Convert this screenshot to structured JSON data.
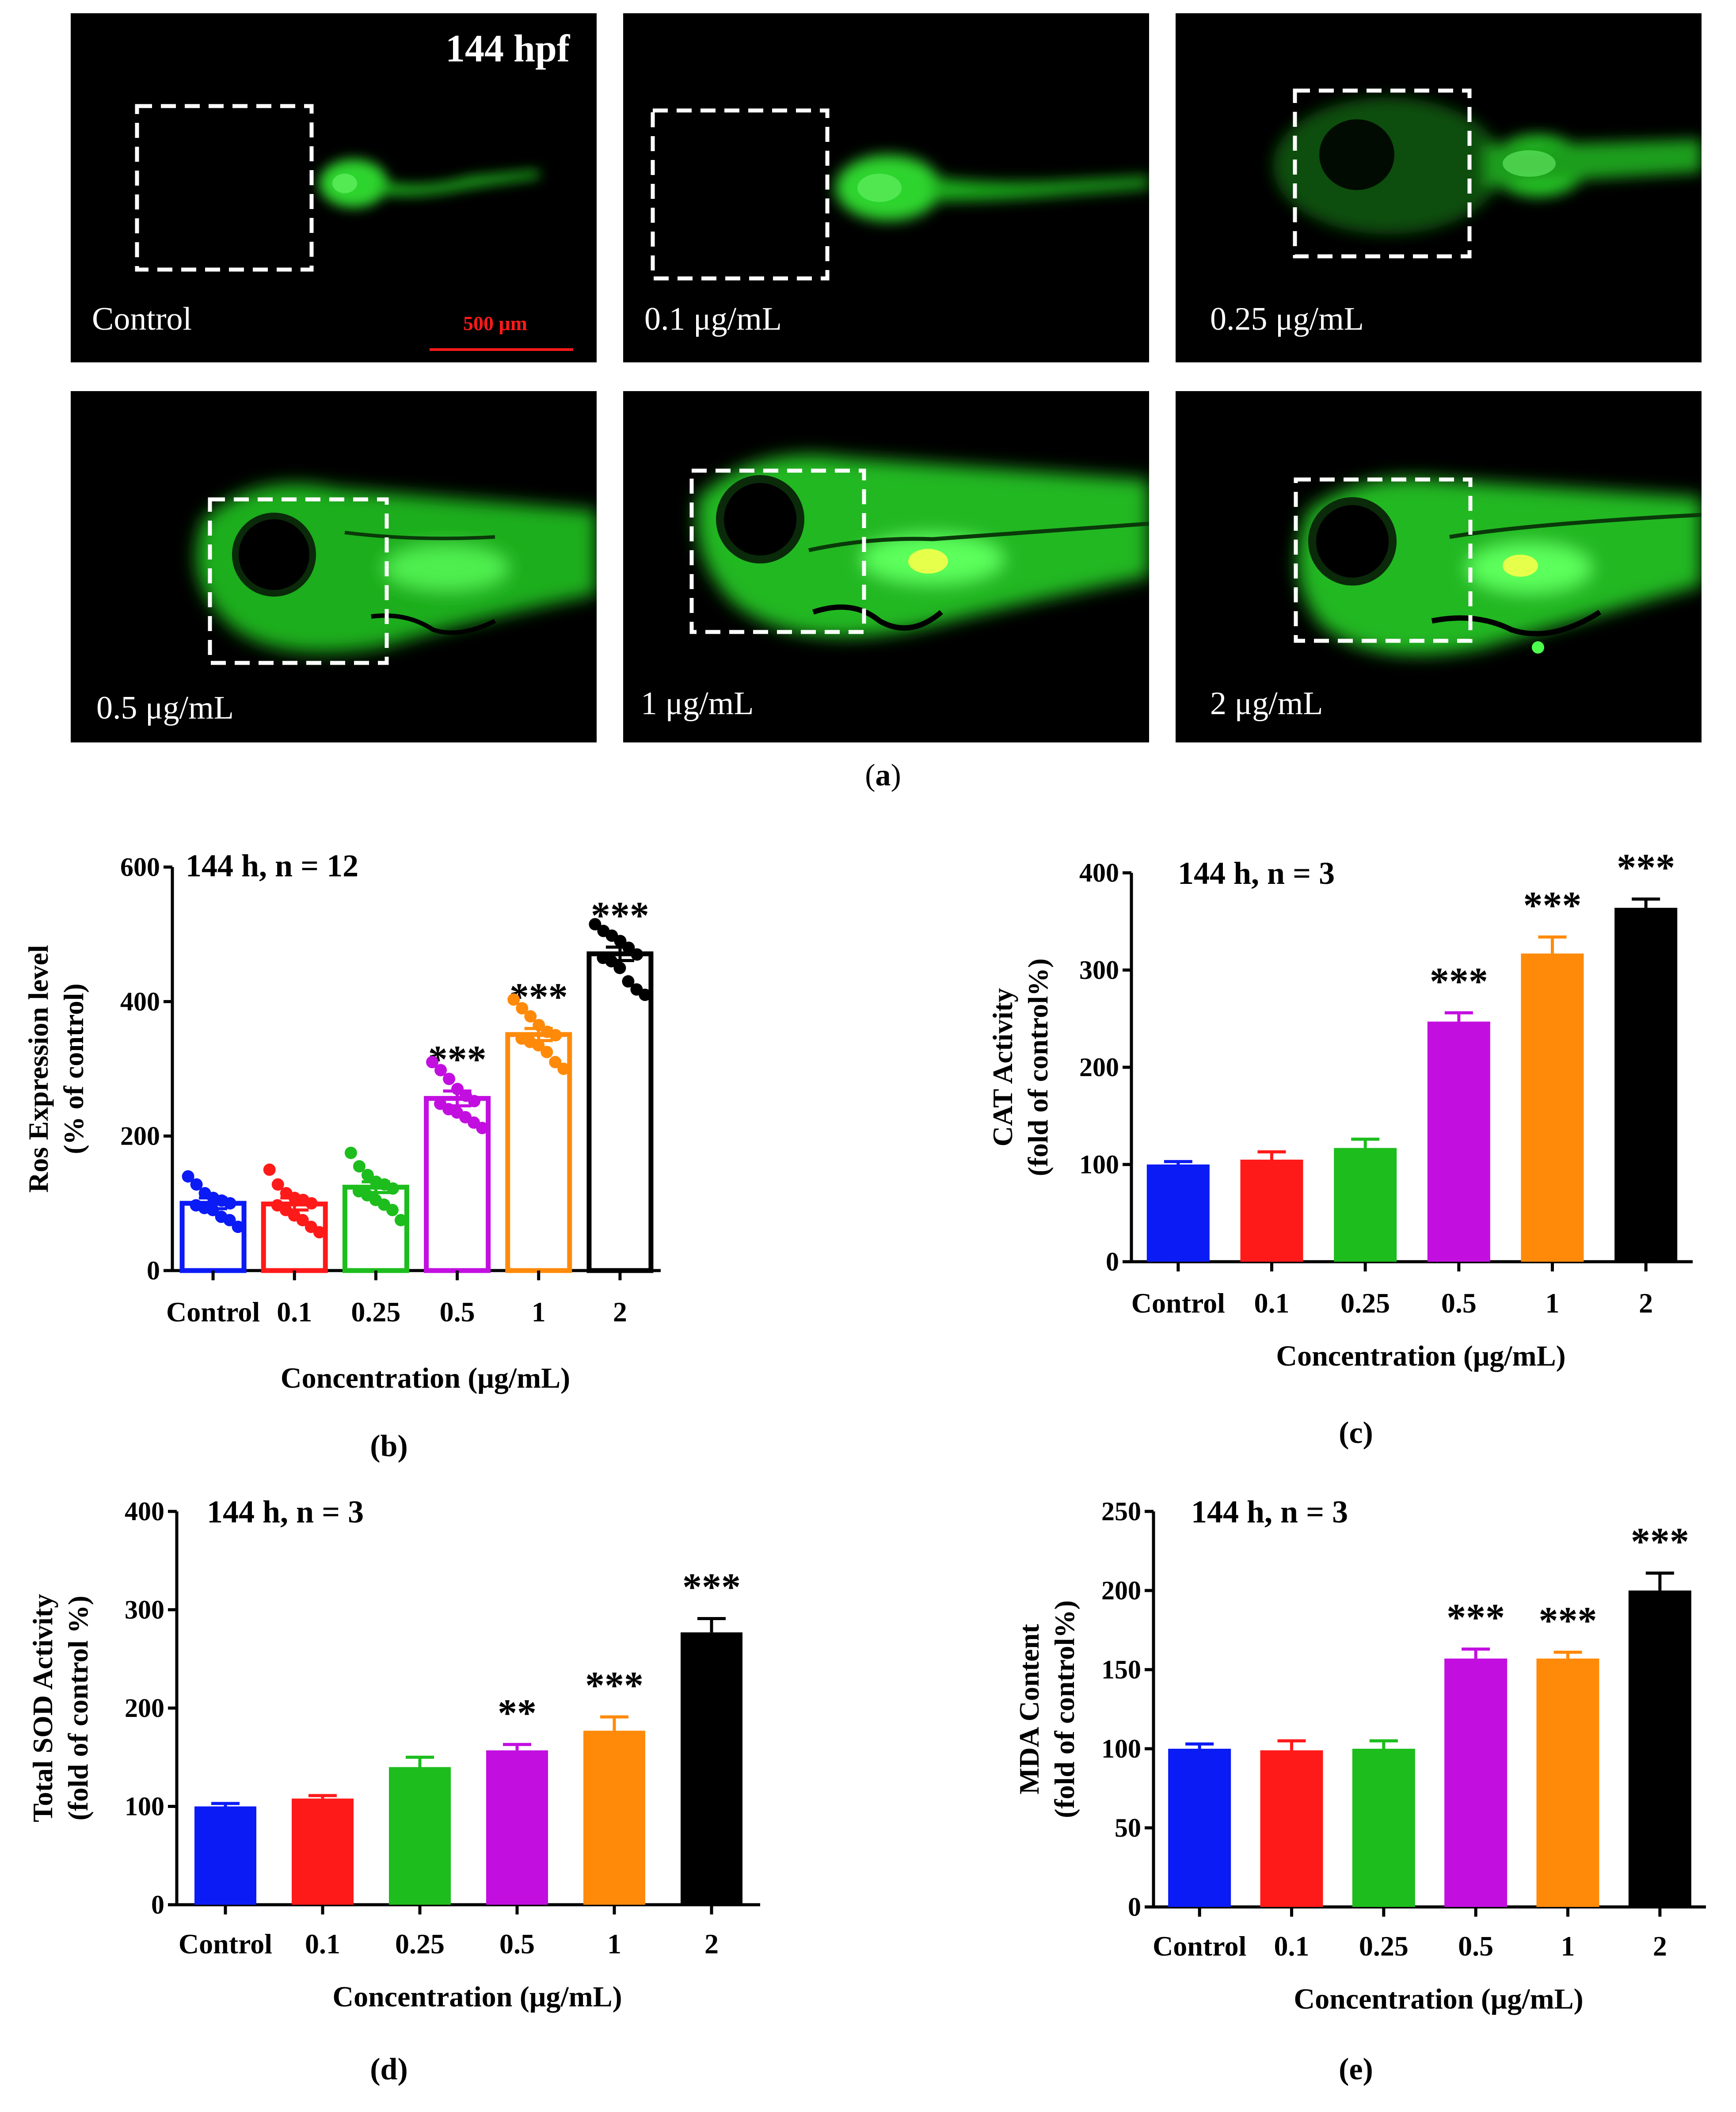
{
  "figure": {
    "panel_a": {
      "caption_letter": "a",
      "time_label": "144 hpf",
      "scale_bar_label": "500 μm",
      "scale_bar_color": "#ff1a1a",
      "fluorescence_color": "#27e627",
      "images": [
        {
          "label": "Control"
        },
        {
          "label": "0.1 μg/mL"
        },
        {
          "label": "0.25 μg/mL"
        },
        {
          "label": "0.5 μg/mL"
        },
        {
          "label": "1 μg/mL"
        },
        {
          "label": "2 μg/mL"
        }
      ]
    }
  },
  "chart_data": [
    {
      "id": "b",
      "caption_letter": "b",
      "type": "bar",
      "scatter_overlay": true,
      "bar_style": "outline",
      "title": "144 h, n = 12",
      "ylabel_line1": "Ros Expression level",
      "ylabel_line2": "(% of control)",
      "xlabel": "Concentration (μg/mL)",
      "ylim": [
        0,
        600
      ],
      "yticks": [
        "0",
        "200",
        "400",
        "600"
      ],
      "ytick_values": [
        0,
        200,
        400,
        600
      ],
      "categories": [
        "Control",
        "0.1",
        "0.25",
        "0.5",
        "1",
        "2"
      ],
      "values": [
        100,
        99,
        124,
        256,
        351,
        471
      ],
      "errors": [
        8,
        9,
        8,
        11,
        9,
        10
      ],
      "significance": [
        "",
        "",
        "",
        "***",
        "***",
        "***"
      ],
      "colors": [
        "#0b1bf5",
        "#ff1a1a",
        "#1dbd1d",
        "#c20fe0",
        "#ff8a0a",
        "#000000"
      ],
      "points": [
        [
          140,
          128,
          115,
          108,
          104,
          100,
          97,
          93,
          90,
          80,
          75,
          65
        ],
        [
          150,
          128,
          115,
          108,
          105,
          100,
          97,
          90,
          82,
          75,
          65,
          57
        ],
        [
          175,
          155,
          142,
          132,
          128,
          122,
          118,
          112,
          105,
          98,
          90,
          75
        ],
        [
          310,
          298,
          285,
          270,
          260,
          252,
          248,
          240,
          235,
          228,
          220,
          212
        ],
        [
          403,
          390,
          378,
          365,
          355,
          350,
          345,
          340,
          335,
          325,
          310,
          300
        ],
        [
          515,
          505,
          498,
          490,
          480,
          470,
          465,
          460,
          450,
          430,
          418,
          410
        ]
      ]
    },
    {
      "id": "c",
      "caption_letter": "c",
      "type": "bar",
      "title": "144 h, n = 3",
      "ylabel_line1": "CAT Activity",
      "ylabel_line2": "(fold of control%)",
      "xlabel": "Concentration (μg/mL)",
      "ylim": [
        0,
        400
      ],
      "yticks": [
        "0",
        "100",
        "200",
        "300",
        "400"
      ],
      "ytick_values": [
        0,
        100,
        200,
        300,
        400
      ],
      "categories": [
        "Control",
        "0.1",
        "0.25",
        "0.5",
        "1",
        "2"
      ],
      "values": [
        100,
        105,
        117,
        247,
        317,
        364
      ],
      "errors": [
        3,
        8,
        9,
        9,
        17,
        9
      ],
      "significance": [
        "",
        "",
        "",
        "***",
        "***",
        "***"
      ],
      "colors": [
        "#0b1bf5",
        "#ff1a1a",
        "#1dbd1d",
        "#c20fe0",
        "#ff8a0a",
        "#000000"
      ]
    },
    {
      "id": "d",
      "caption_letter": "d",
      "type": "bar",
      "title": "144 h, n = 3",
      "ylabel_line1": "Total SOD Activity",
      "ylabel_line2": "(fold of control %)",
      "xlabel": "Concentration (μg/mL)",
      "ylim": [
        0,
        400
      ],
      "yticks": [
        "0",
        "100",
        "200",
        "300",
        "400"
      ],
      "ytick_values": [
        0,
        100,
        200,
        300,
        400
      ],
      "categories": [
        "Control",
        "0.1",
        "0.25",
        "0.5",
        "1",
        "2"
      ],
      "values": [
        100,
        108,
        140,
        157,
        177,
        277
      ],
      "errors": [
        3,
        3,
        10,
        6,
        14,
        14
      ],
      "significance": [
        "",
        "",
        "",
        "**",
        "***",
        "***"
      ],
      "colors": [
        "#0b1bf5",
        "#ff1a1a",
        "#1dbd1d",
        "#c20fe0",
        "#ff8a0a",
        "#000000"
      ]
    },
    {
      "id": "e",
      "caption_letter": "e",
      "type": "bar",
      "title": "144 h, n = 3",
      "ylabel_line1": "MDA Content",
      "ylabel_line2": "(fold of control%)",
      "xlabel": "Concentration (μg/mL)",
      "ylim": [
        0,
        250
      ],
      "yticks": [
        "0",
        "50",
        "100",
        "150",
        "200",
        "250"
      ],
      "ytick_values": [
        0,
        50,
        100,
        150,
        200,
        250
      ],
      "categories": [
        "Control",
        "0.1",
        "0.25",
        "0.5",
        "1",
        "2"
      ],
      "values": [
        100,
        99,
        100,
        157,
        157,
        200
      ],
      "errors": [
        3,
        6,
        5,
        6,
        4,
        11
      ],
      "significance": [
        "",
        "",
        "",
        "***",
        "***",
        "***"
      ],
      "colors": [
        "#0b1bf5",
        "#ff1a1a",
        "#1dbd1d",
        "#c20fe0",
        "#ff8a0a",
        "#000000"
      ]
    }
  ]
}
